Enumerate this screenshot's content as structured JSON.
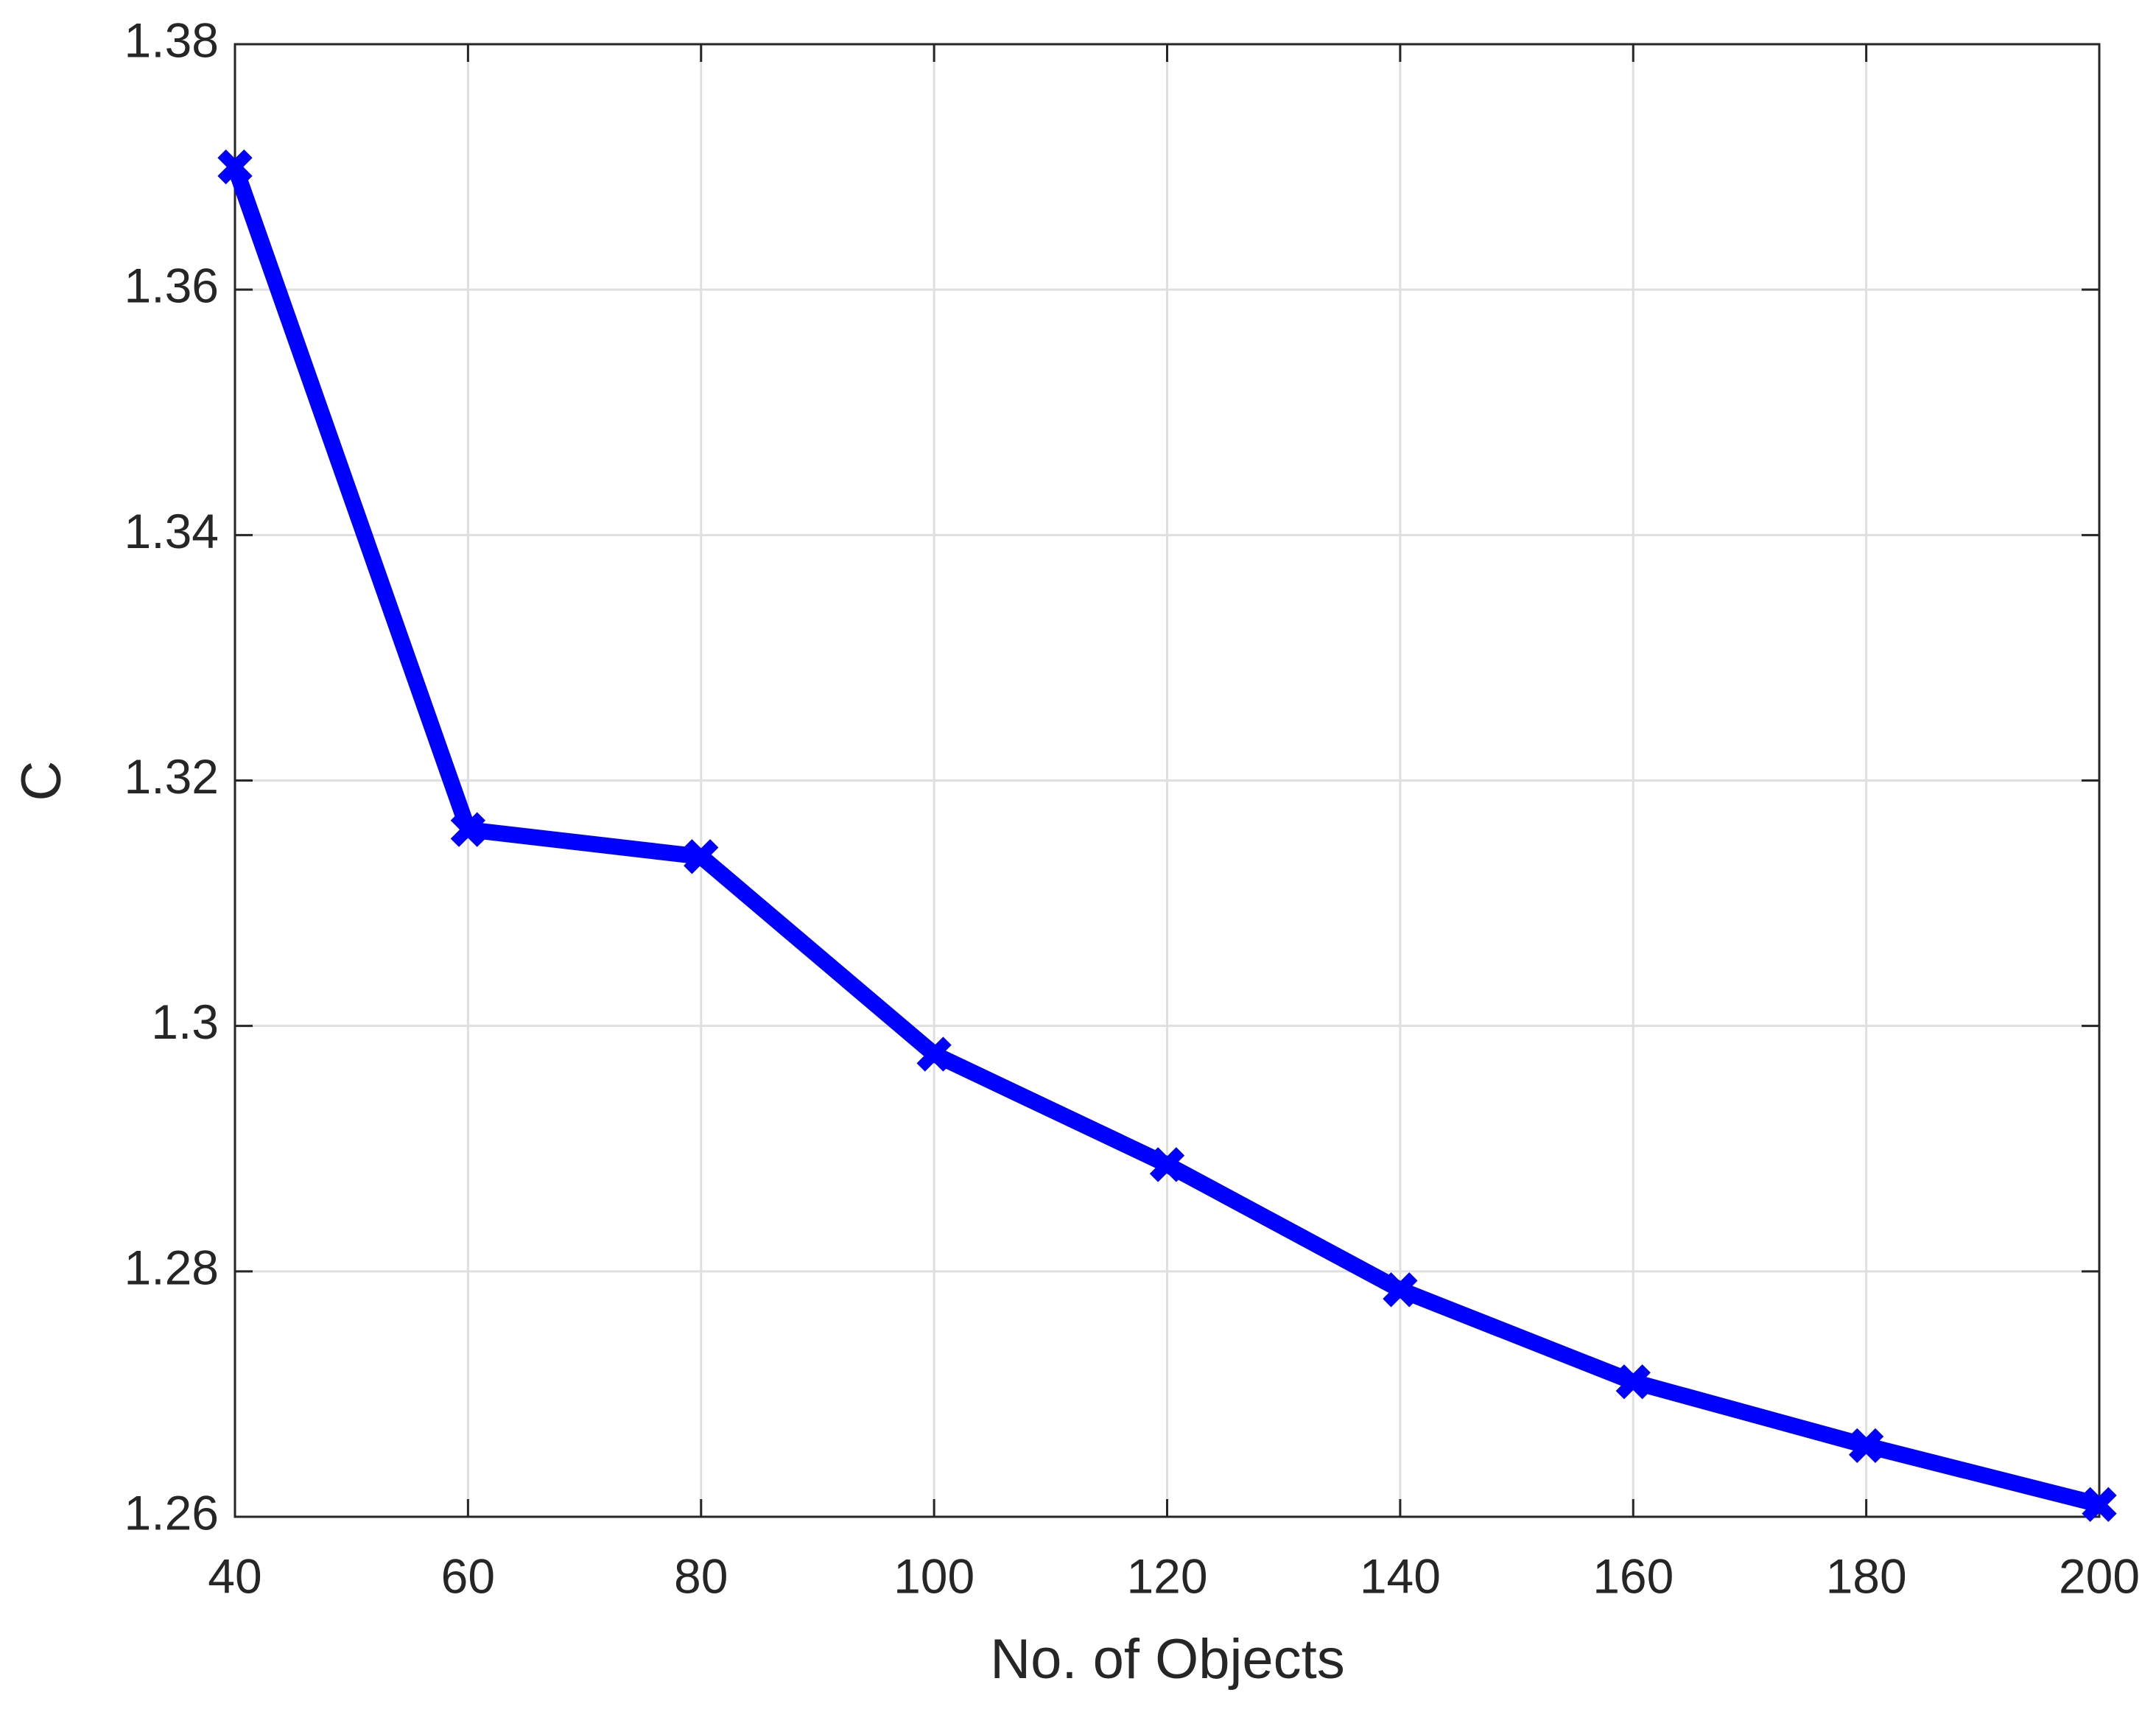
{
  "chart_data": {
    "type": "line",
    "xlabel": "No. of Objects",
    "ylabel": "C",
    "x": [
      40,
      60,
      80,
      100,
      120,
      140,
      160,
      180,
      200
    ],
    "series": [
      {
        "color": "#0000ff",
        "marker": "x",
        "values": [
          1.37,
          1.316,
          1.3138,
          1.2977,
          1.2887,
          1.2785,
          1.271,
          1.2658,
          1.261
        ]
      }
    ],
    "xlim": [
      40,
      200
    ],
    "xticks": [
      40,
      60,
      80,
      100,
      120,
      140,
      160,
      180,
      200
    ],
    "ylim": [
      1.26,
      1.38
    ],
    "yticks": [
      1.26,
      1.28,
      1.3,
      1.32,
      1.34,
      1.36,
      1.38
    ],
    "grid": true
  }
}
